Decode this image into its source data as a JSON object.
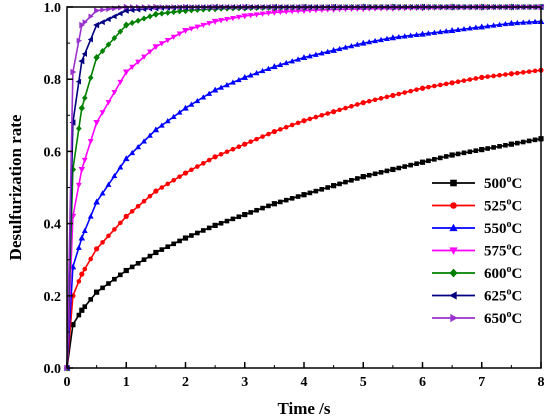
{
  "chart_data": {
    "type": "line",
    "xlabel": "Time /s",
    "ylabel": "Desulfurization rate",
    "xlim": [
      0,
      8
    ],
    "ylim": [
      0,
      1.0
    ],
    "x_ticks": [
      "0",
      "1",
      "2",
      "3",
      "4",
      "5",
      "6",
      "7",
      "8"
    ],
    "y_ticks": [
      "0.0",
      "0.2",
      "0.4",
      "0.6",
      "0.8",
      "1.0"
    ],
    "grid": false,
    "legend_placement": "bottom-right",
    "x": [
      0,
      0.1,
      0.25,
      0.5,
      1,
      1.5,
      2,
      2.5,
      3,
      3.5,
      4,
      4.5,
      5,
      5.5,
      6,
      6.5,
      7,
      7.5,
      8
    ],
    "series": [
      {
        "name": "500",
        "unit": "oC",
        "color": "#000000",
        "marker": "square",
        "values": [
          0,
          0.12,
          0.16,
          0.21,
          0.27,
          0.32,
          0.36,
          0.395,
          0.425,
          0.455,
          0.48,
          0.505,
          0.53,
          0.55,
          0.57,
          0.59,
          0.605,
          0.62,
          0.635
        ]
      },
      {
        "name": "525",
        "unit": "oC",
        "color": "#ff0000",
        "marker": "circle",
        "values": [
          0,
          0.2,
          0.26,
          0.33,
          0.42,
          0.49,
          0.54,
          0.585,
          0.62,
          0.655,
          0.685,
          0.71,
          0.735,
          0.755,
          0.775,
          0.79,
          0.805,
          0.815,
          0.825
        ]
      },
      {
        "name": "550",
        "unit": "oC",
        "color": "#0000ff",
        "marker": "triangle-up",
        "values": [
          0,
          0.28,
          0.36,
          0.46,
          0.58,
          0.66,
          0.72,
          0.77,
          0.805,
          0.835,
          0.86,
          0.88,
          0.9,
          0.915,
          0.925,
          0.935,
          0.945,
          0.955,
          0.96
        ]
      },
      {
        "name": "575",
        "unit": "oC",
        "color": "#ff00ff",
        "marker": "triangle-down",
        "values": [
          0,
          0.42,
          0.55,
          0.68,
          0.82,
          0.89,
          0.935,
          0.96,
          0.975,
          0.985,
          0.99,
          0.993,
          0.995,
          0.996,
          0.997,
          0.998,
          0.998,
          0.999,
          0.999
        ]
      },
      {
        "name": "600",
        "unit": "oC",
        "color": "#008000",
        "marker": "diamond",
        "values": [
          0,
          0.55,
          0.72,
          0.86,
          0.95,
          0.98,
          0.99,
          0.995,
          0.997,
          0.998,
          0.999,
          0.999,
          1.0,
          1.0,
          1.0,
          1.0,
          1.0,
          1.0,
          1.0
        ]
      },
      {
        "name": "625",
        "unit": "oC",
        "color": "#000080",
        "marker": "triangle-left",
        "values": [
          0,
          0.68,
          0.85,
          0.95,
          0.99,
          0.997,
          0.999,
          1.0,
          1.0,
          1.0,
          1.0,
          1.0,
          1.0,
          1.0,
          1.0,
          1.0,
          1.0,
          1.0,
          1.0
        ]
      },
      {
        "name": "650",
        "unit": "oC",
        "color": "#9932cc",
        "marker": "triangle-right",
        "values": [
          0,
          0.82,
          0.95,
          0.99,
          1.0,
          1.0,
          1.0,
          1.0,
          1.0,
          1.0,
          1.0,
          1.0,
          1.0,
          1.0,
          1.0,
          1.0,
          1.0,
          1.0,
          1.0
        ]
      }
    ]
  }
}
